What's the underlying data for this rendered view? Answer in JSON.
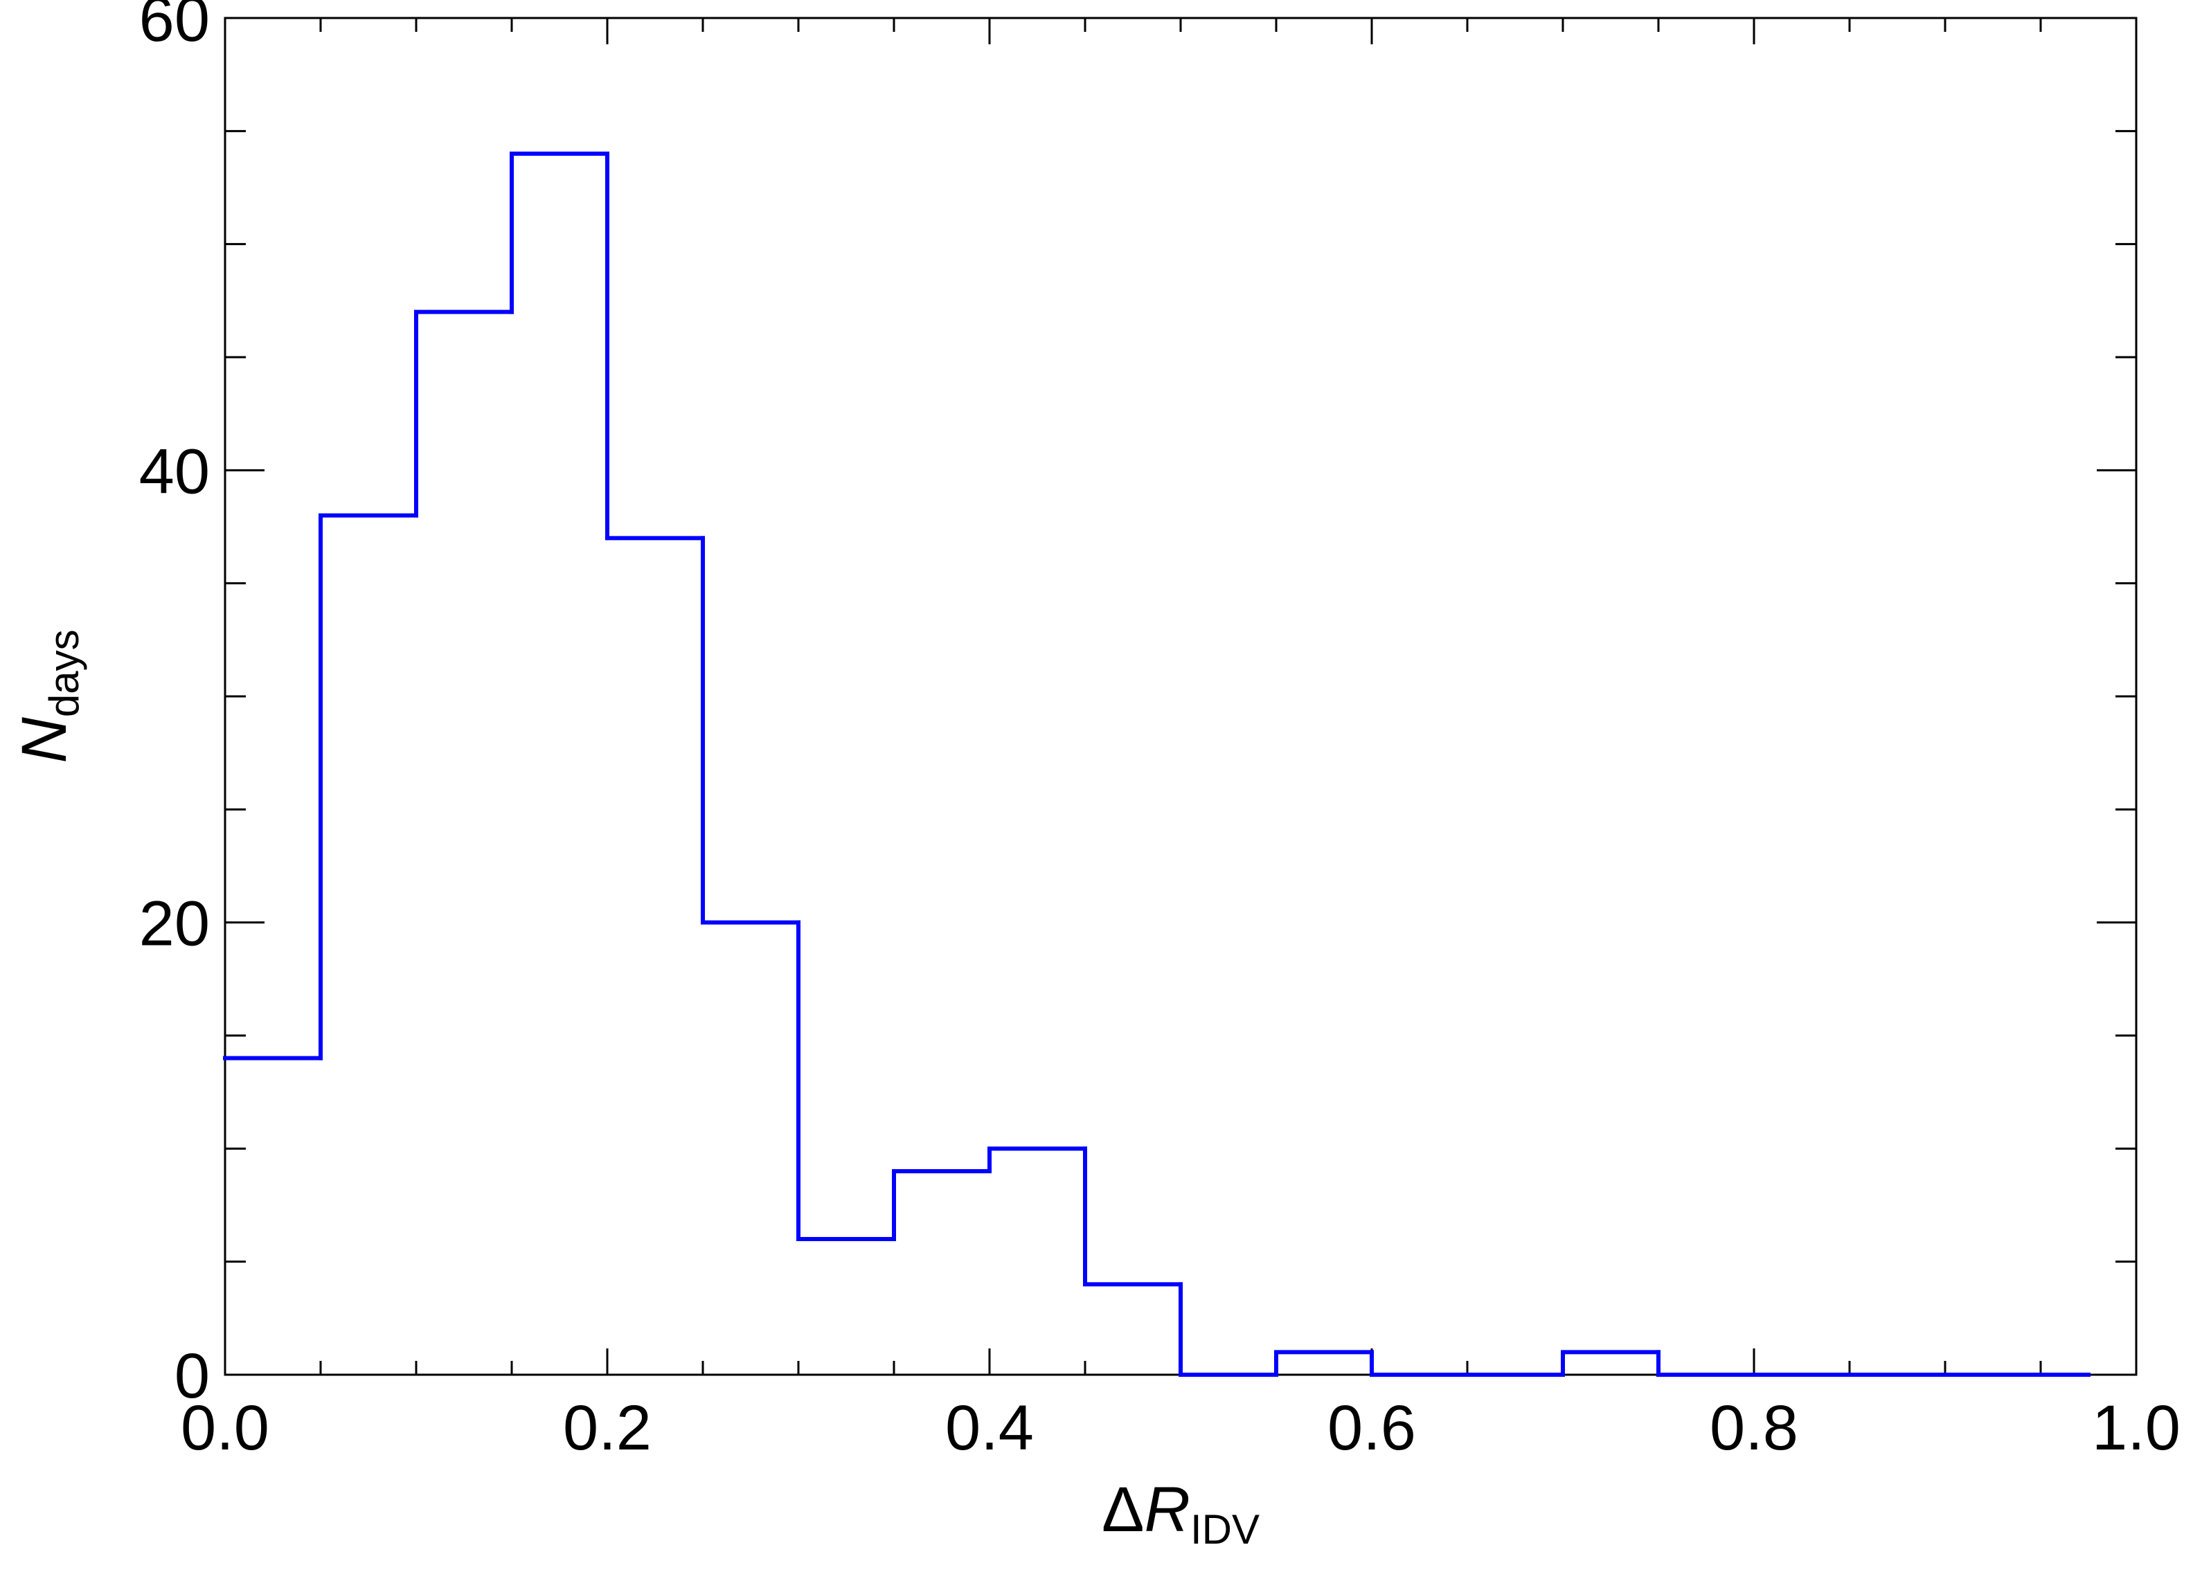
{
  "chart_data": {
    "type": "histogram",
    "xlabel": {
      "symbol": "Δ",
      "var": "R",
      "sub": "IDV"
    },
    "ylabel": {
      "var": "N",
      "sub": "days"
    },
    "bins": [
      0,
      0.05,
      0.1,
      0.15,
      0.2,
      0.25,
      0.3,
      0.35,
      0.4,
      0.45,
      0.5,
      0.55,
      0.6,
      0.65,
      0.7,
      0.75,
      0.8,
      0.85,
      0.9,
      0.95,
      0.975
    ],
    "values": [
      14,
      38,
      47,
      54,
      37,
      20,
      6,
      9,
      10,
      4,
      0,
      1,
      0,
      0,
      1,
      0,
      0,
      0,
      0,
      0
    ],
    "color": "#0000ff",
    "xlim": [
      0,
      1
    ],
    "ylim": [
      0,
      60
    ],
    "xticks": [
      {
        "value": 0,
        "label": "0.0"
      },
      0.2,
      0.4,
      0.6,
      0.8,
      {
        "value": 1,
        "label": "1.0"
      }
    ],
    "yticks": [
      0,
      20,
      40,
      60
    ],
    "minor_divisions": 4
  }
}
